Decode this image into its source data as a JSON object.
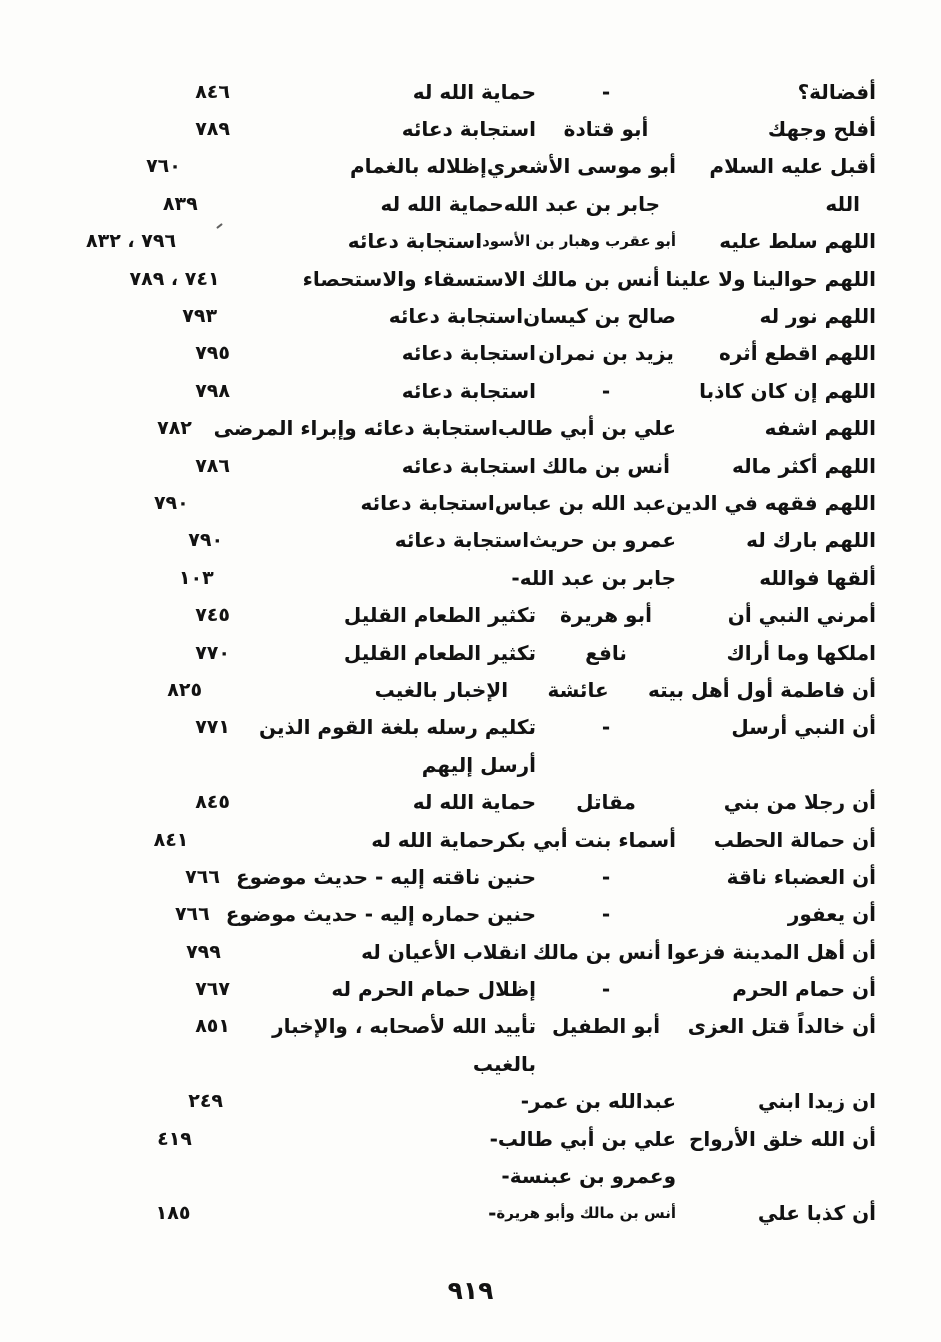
{
  "page": {
    "footer_page_number": "٩١٩"
  },
  "table": {
    "rows": [
      {
        "hadith": "أفضالة؟",
        "narrator": "-",
        "subject": "حماية الله له",
        "pages": "٨٤٦"
      },
      {
        "hadith": "أفلح وجهك",
        "narrator": "أبو قتادة",
        "subject": "استجابة دعائه",
        "pages": "٧٨٩"
      },
      {
        "hadith": "أقبل عليه السلام",
        "narrator": "أبو موسى الأشعري",
        "subject": "إظلاله بالغمام",
        "pages": "٧٦٠"
      },
      {
        "hadith": "الله",
        "hadith_indent": true,
        "narrator": "جابر بن عبد الله",
        "subject": "حماية الله له",
        "pages": "٨٣٩"
      },
      {
        "hadith": "اللهم سلط عليه",
        "narrator": "أبو عقرب وهبار بن الأسود",
        "narrator_small": true,
        "subject": "استجابة دعائه",
        "pages": "٧٩٦ ، ٨٣٢"
      },
      {
        "hadith": "اللهم حوالينا ولا علينا",
        "narrator": "أنس بن مالك",
        "subject": "الاستسقاء والاستحصاء",
        "pages": "٧٤١ ، ٧٨٩"
      },
      {
        "hadith": "اللهم نور له",
        "narrator": "صالح بن كيسان",
        "subject": "استجابة دعائه",
        "pages": "٧٩٣"
      },
      {
        "hadith": "اللهم اقطع أثره",
        "narrator": "يزيد بن نمران",
        "subject": "استجابة دعائه",
        "pages": "٧٩٥"
      },
      {
        "hadith": "اللهم إن كان كاذبا",
        "narrator": "-",
        "subject": "استجابة دعائه",
        "pages": "٧٩٨"
      },
      {
        "hadith": "اللهم اشفه",
        "narrator": "علي بن أبي طالب",
        "subject": "استجابة دعائه وإبراء المرضى",
        "pages": "٧٨٢"
      },
      {
        "hadith": "اللهم أكثر ماله",
        "narrator": "أنس بن مالك",
        "subject": "استجابة دعائه",
        "pages": "٧٨٦"
      },
      {
        "hadith": "اللهم فقهه في الدين",
        "narrator": "عبد الله بن عباس",
        "subject": "استجابة دعائه",
        "pages": "٧٩٠"
      },
      {
        "hadith": "اللهم بارك له",
        "narrator": "عمرو بن حريث",
        "subject": "استجابة دعائه",
        "pages": "٧٩٠"
      },
      {
        "hadith": "ألقها فوالله",
        "narrator": "جابر بن عبد الله",
        "subject": "-",
        "pages": "١٠٣"
      },
      {
        "hadith": "أمرني النبي أن",
        "narrator": "أبو هريرة",
        "subject": "تكثير الطعام القليل",
        "pages": "٧٤٥"
      },
      {
        "hadith": "املكها وما أراك",
        "narrator": "نافع",
        "subject": "تكثير الطعام القليل",
        "pages": "٧٧٠"
      },
      {
        "hadith": "أن فاطمة أول أهل بيته",
        "narrator": "عائشة",
        "subject": "الإخبار بالغيب",
        "pages": "٨٢٥"
      },
      {
        "hadith": "أن النبي أرسل",
        "narrator": "-",
        "subject": "تكليم رسله بلغة القوم الذين",
        "pages": "٧٧١"
      },
      {
        "hadith": "",
        "narrator": "",
        "subject": "أرسل إليهم",
        "pages": ""
      },
      {
        "hadith": "أن رجلا من بني",
        "narrator": "مقاتل",
        "subject": "حماية الله له",
        "pages": "٨٤٥"
      },
      {
        "hadith": "أن حمالة الحطب",
        "narrator": "أسماء بنت أبي بكر",
        "subject": "حماية الله له",
        "pages": "٨٤١"
      },
      {
        "hadith": "أن العضباء ناقة",
        "narrator": "-",
        "subject": "حنين ناقته إليه - حديث موضوع",
        "pages": "٧٦٦"
      },
      {
        "hadith": "أن يعفور",
        "narrator": "-",
        "subject": "حنين حماره إليه - حديث موضوع",
        "pages": "٧٦٦"
      },
      {
        "hadith": "أن أهل المدينة فزعوا",
        "narrator": "أنس بن مالك",
        "subject": "انقلاب الأعيان له",
        "pages": "٧٩٩"
      },
      {
        "hadith": "أن حمام الحرم",
        "narrator": "-",
        "subject": "إظلال حمام الحرم له",
        "pages": "٧٦٧"
      },
      {
        "hadith": "أن خالداً قتل العزى",
        "narrator": "أبو الطفيل",
        "subject": "تأييد الله لأصحابه ، والإخبار",
        "pages": "٨٥١"
      },
      {
        "hadith": "",
        "narrator": "",
        "subject": "بالغيب",
        "pages": ""
      },
      {
        "hadith": "ان زيدا ابني",
        "narrator": "عبدالله بن عمر",
        "subject": "-",
        "pages": "٢٤٩"
      },
      {
        "hadith": "أن الله خلق الأرواح",
        "narrator": "علي بن أبي طالب",
        "subject": "-",
        "pages": "٤١٩"
      },
      {
        "hadith": "",
        "narrator": "وعمرو بن عبنسة",
        "subject": "-",
        "pages": ""
      },
      {
        "hadith": "أن كذبا علي",
        "narrator": "أنس بن مالك وأبو هريرة",
        "narrator_small": true,
        "subject": "-",
        "pages": "١٨٥"
      }
    ]
  }
}
